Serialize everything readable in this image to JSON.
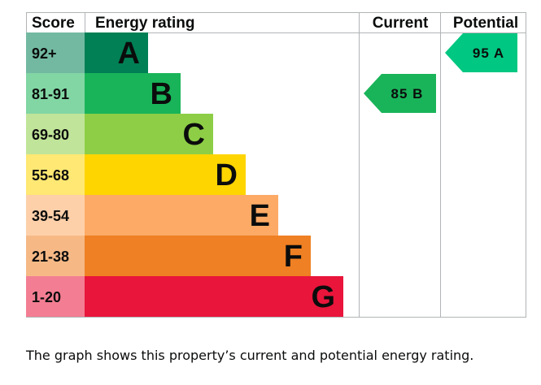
{
  "chart_data": {
    "type": "bar",
    "headers": {
      "score": "Score",
      "rating": "Energy rating",
      "current": "Current",
      "potential": "Potential"
    },
    "bands": [
      {
        "score": "92+",
        "letter": "A",
        "min": 92,
        "max": 100,
        "color": "#008054"
      },
      {
        "score": "81-91",
        "letter": "B",
        "min": 81,
        "max": 91,
        "color": "#19b459"
      },
      {
        "score": "69-80",
        "letter": "C",
        "min": 69,
        "max": 80,
        "color": "#8dce46"
      },
      {
        "score": "55-68",
        "letter": "D",
        "min": 55,
        "max": 68,
        "color": "#ffd500"
      },
      {
        "score": "39-54",
        "letter": "E",
        "min": 39,
        "max": 54,
        "color": "#fcaa65"
      },
      {
        "score": "21-38",
        "letter": "F",
        "min": 21,
        "max": 38,
        "color": "#ef8023"
      },
      {
        "score": "1-20",
        "letter": "G",
        "min": 1,
        "max": 20,
        "color": "#e9153b"
      }
    ],
    "current": {
      "value": 85,
      "letter": "B",
      "label": "85 B",
      "color": "#19b459"
    },
    "potential": {
      "value": 95,
      "letter": "A",
      "label": "95 A",
      "color": "#00c781"
    }
  },
  "caption": "The graph shows this property’s current and potential energy rating."
}
